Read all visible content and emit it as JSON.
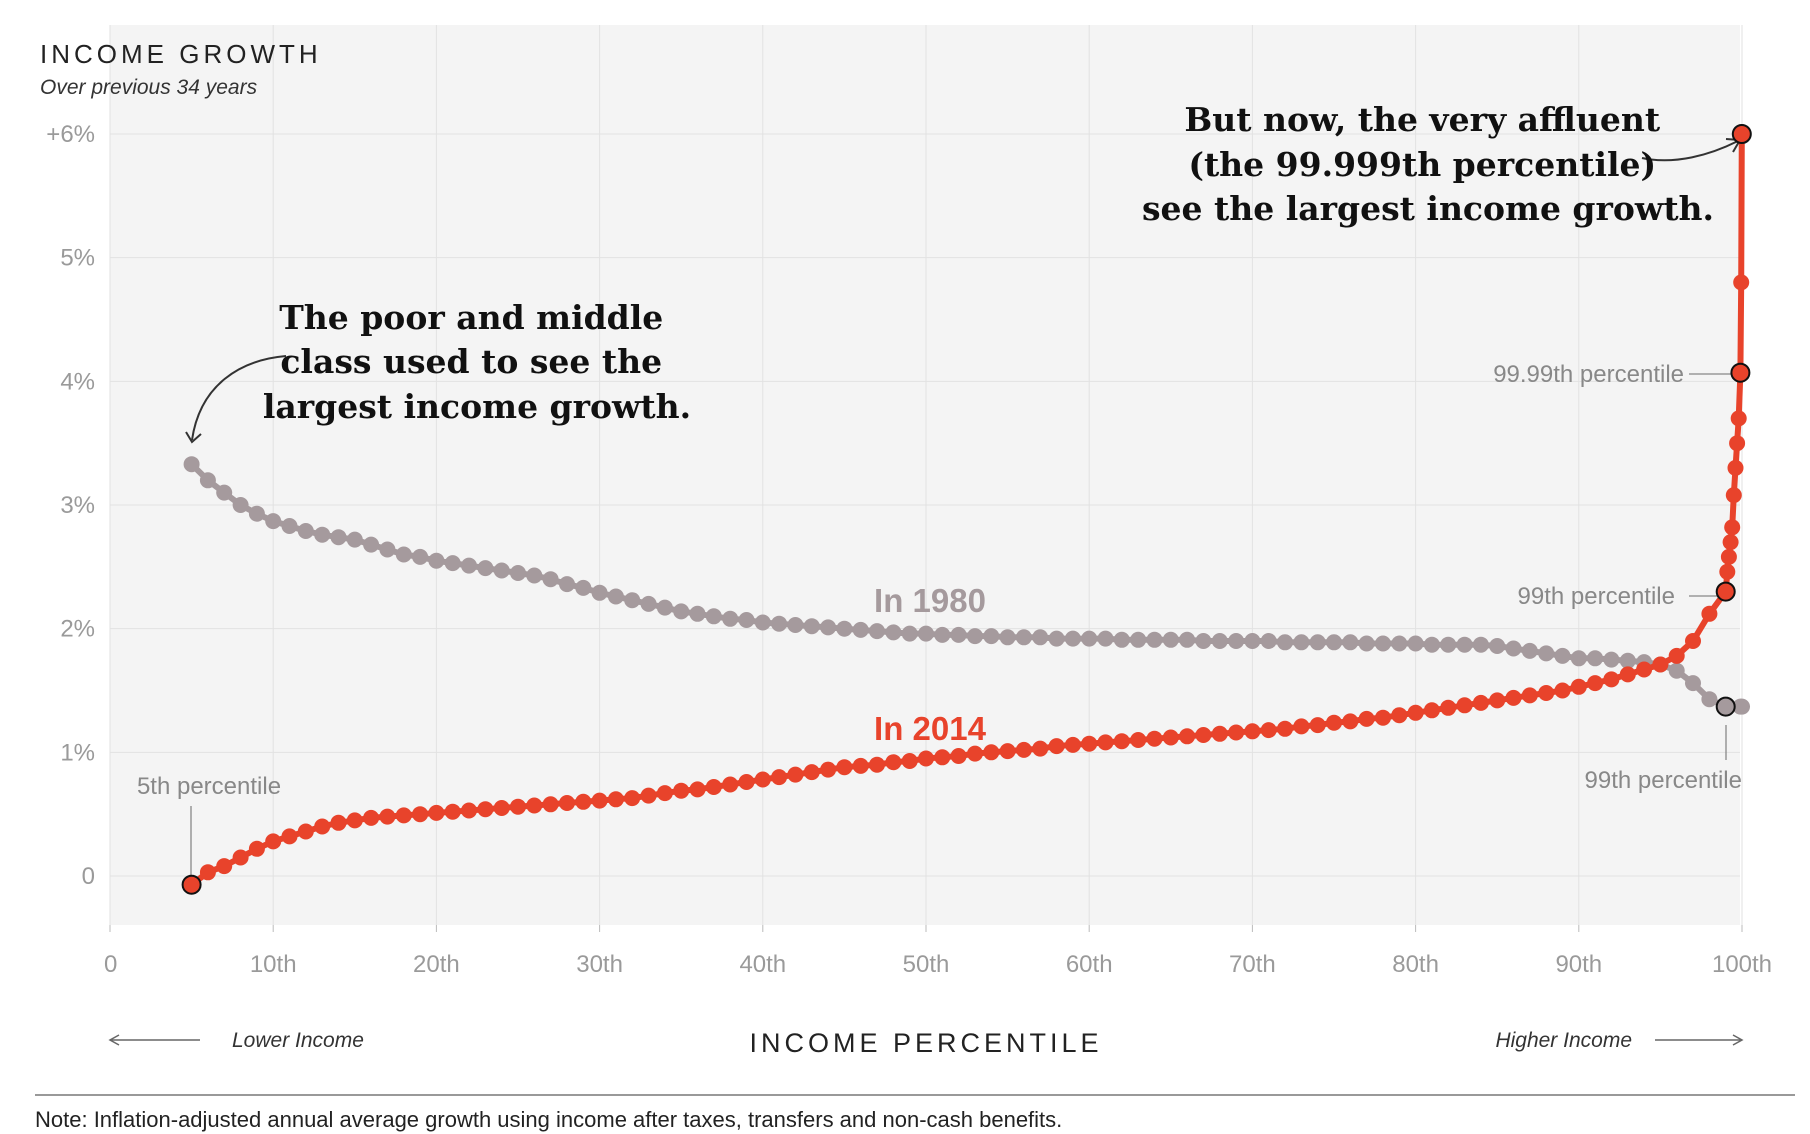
{
  "chart_data": {
    "type": "line",
    "title": "INCOME GROWTH",
    "subtitle": "Over previous 34 years",
    "xlabel": "INCOME PERCENTILE",
    "x_left_note": "Lower Income",
    "x_right_note": "Higher Income",
    "note": "Note: Inflation-adjusted annual average growth using income after taxes, transfers and non-cash benefits.",
    "xlim": [
      0,
      100
    ],
    "ylim": [
      -0.9,
      6.7
    ],
    "x_ticks": [
      {
        "value": 0,
        "label": "0"
      },
      {
        "value": 10,
        "label": "10th"
      },
      {
        "value": 20,
        "label": "20th"
      },
      {
        "value": 30,
        "label": "30th"
      },
      {
        "value": 40,
        "label": "40th"
      },
      {
        "value": 50,
        "label": "50th"
      },
      {
        "value": 60,
        "label": "60th"
      },
      {
        "value": 70,
        "label": "70th"
      },
      {
        "value": 80,
        "label": "80th"
      },
      {
        "value": 90,
        "label": "90th"
      },
      {
        "value": 100,
        "label": "100th"
      }
    ],
    "y_ticks": [
      {
        "value": 0,
        "label": "0"
      },
      {
        "value": 1,
        "label": "1%"
      },
      {
        "value": 2,
        "label": "2%"
      },
      {
        "value": 3,
        "label": "3%"
      },
      {
        "value": 4,
        "label": "4%"
      },
      {
        "value": 5,
        "label": "5%"
      },
      {
        "value": 6,
        "label": "+6%"
      }
    ],
    "series": [
      {
        "name": "In 1980",
        "color": "#a59a9d",
        "points": [
          [
            5,
            3.33
          ],
          [
            6,
            3.2
          ],
          [
            7,
            3.1
          ],
          [
            8,
            3.0
          ],
          [
            9,
            2.93
          ],
          [
            10,
            2.87
          ],
          [
            11,
            2.83
          ],
          [
            12,
            2.79
          ],
          [
            13,
            2.76
          ],
          [
            14,
            2.74
          ],
          [
            15,
            2.72
          ],
          [
            16,
            2.68
          ],
          [
            17,
            2.64
          ],
          [
            18,
            2.6
          ],
          [
            19,
            2.58
          ],
          [
            20,
            2.55
          ],
          [
            21,
            2.53
          ],
          [
            22,
            2.51
          ],
          [
            23,
            2.49
          ],
          [
            24,
            2.47
          ],
          [
            25,
            2.45
          ],
          [
            26,
            2.43
          ],
          [
            27,
            2.4
          ],
          [
            28,
            2.36
          ],
          [
            29,
            2.33
          ],
          [
            30,
            2.29
          ],
          [
            31,
            2.26
          ],
          [
            32,
            2.23
          ],
          [
            33,
            2.2
          ],
          [
            34,
            2.17
          ],
          [
            35,
            2.14
          ],
          [
            36,
            2.12
          ],
          [
            37,
            2.1
          ],
          [
            38,
            2.08
          ],
          [
            39,
            2.07
          ],
          [
            40,
            2.05
          ],
          [
            41,
            2.04
          ],
          [
            42,
            2.03
          ],
          [
            43,
            2.02
          ],
          [
            44,
            2.01
          ],
          [
            45,
            2.0
          ],
          [
            46,
            1.99
          ],
          [
            47,
            1.98
          ],
          [
            48,
            1.97
          ],
          [
            49,
            1.96
          ],
          [
            50,
            1.96
          ],
          [
            51,
            1.95
          ],
          [
            52,
            1.95
          ],
          [
            53,
            1.94
          ],
          [
            54,
            1.94
          ],
          [
            55,
            1.93
          ],
          [
            56,
            1.93
          ],
          [
            57,
            1.93
          ],
          [
            58,
            1.92
          ],
          [
            59,
            1.92
          ],
          [
            60,
            1.92
          ],
          [
            61,
            1.92
          ],
          [
            62,
            1.91
          ],
          [
            63,
            1.91
          ],
          [
            64,
            1.91
          ],
          [
            65,
            1.91
          ],
          [
            66,
            1.91
          ],
          [
            67,
            1.9
          ],
          [
            68,
            1.9
          ],
          [
            69,
            1.9
          ],
          [
            70,
            1.9
          ],
          [
            71,
            1.9
          ],
          [
            72,
            1.89
          ],
          [
            73,
            1.89
          ],
          [
            74,
            1.89
          ],
          [
            75,
            1.89
          ],
          [
            76,
            1.89
          ],
          [
            77,
            1.88
          ],
          [
            78,
            1.88
          ],
          [
            79,
            1.88
          ],
          [
            80,
            1.88
          ],
          [
            81,
            1.87
          ],
          [
            82,
            1.87
          ],
          [
            83,
            1.87
          ],
          [
            84,
            1.87
          ],
          [
            85,
            1.86
          ],
          [
            86,
            1.84
          ],
          [
            87,
            1.82
          ],
          [
            88,
            1.8
          ],
          [
            89,
            1.78
          ],
          [
            90,
            1.76
          ],
          [
            91,
            1.76
          ],
          [
            92,
            1.75
          ],
          [
            93,
            1.74
          ],
          [
            94,
            1.73
          ],
          [
            95,
            1.71
          ],
          [
            96,
            1.66
          ],
          [
            97,
            1.56
          ],
          [
            98,
            1.43
          ],
          [
            99,
            1.37
          ],
          [
            99.9,
            1.37
          ],
          [
            100,
            1.37
          ]
        ]
      },
      {
        "name": "In 2014",
        "color": "#e8432b",
        "points": [
          [
            5,
            -0.07
          ],
          [
            6,
            0.03
          ],
          [
            7,
            0.08
          ],
          [
            8,
            0.15
          ],
          [
            9,
            0.22
          ],
          [
            10,
            0.28
          ],
          [
            11,
            0.32
          ],
          [
            12,
            0.36
          ],
          [
            13,
            0.4
          ],
          [
            14,
            0.43
          ],
          [
            15,
            0.45
          ],
          [
            16,
            0.47
          ],
          [
            17,
            0.48
          ],
          [
            18,
            0.49
          ],
          [
            19,
            0.5
          ],
          [
            20,
            0.51
          ],
          [
            21,
            0.52
          ],
          [
            22,
            0.53
          ],
          [
            23,
            0.54
          ],
          [
            24,
            0.55
          ],
          [
            25,
            0.56
          ],
          [
            26,
            0.57
          ],
          [
            27,
            0.58
          ],
          [
            28,
            0.59
          ],
          [
            29,
            0.6
          ],
          [
            30,
            0.61
          ],
          [
            31,
            0.62
          ],
          [
            32,
            0.63
          ],
          [
            33,
            0.65
          ],
          [
            34,
            0.67
          ],
          [
            35,
            0.69
          ],
          [
            36,
            0.7
          ],
          [
            37,
            0.72
          ],
          [
            38,
            0.74
          ],
          [
            39,
            0.76
          ],
          [
            40,
            0.78
          ],
          [
            41,
            0.8
          ],
          [
            42,
            0.82
          ],
          [
            43,
            0.84
          ],
          [
            44,
            0.86
          ],
          [
            45,
            0.88
          ],
          [
            46,
            0.89
          ],
          [
            47,
            0.9
          ],
          [
            48,
            0.92
          ],
          [
            49,
            0.93
          ],
          [
            50,
            0.95
          ],
          [
            51,
            0.96
          ],
          [
            52,
            0.97
          ],
          [
            53,
            0.99
          ],
          [
            54,
            1.0
          ],
          [
            55,
            1.01
          ],
          [
            56,
            1.02
          ],
          [
            57,
            1.03
          ],
          [
            58,
            1.05
          ],
          [
            59,
            1.06
          ],
          [
            60,
            1.07
          ],
          [
            61,
            1.08
          ],
          [
            62,
            1.09
          ],
          [
            63,
            1.1
          ],
          [
            64,
            1.11
          ],
          [
            65,
            1.12
          ],
          [
            66,
            1.13
          ],
          [
            67,
            1.14
          ],
          [
            68,
            1.15
          ],
          [
            69,
            1.16
          ],
          [
            70,
            1.17
          ],
          [
            71,
            1.18
          ],
          [
            72,
            1.19
          ],
          [
            73,
            1.21
          ],
          [
            74,
            1.22
          ],
          [
            75,
            1.24
          ],
          [
            76,
            1.25
          ],
          [
            77,
            1.27
          ],
          [
            78,
            1.28
          ],
          [
            79,
            1.3
          ],
          [
            80,
            1.32
          ],
          [
            81,
            1.34
          ],
          [
            82,
            1.36
          ],
          [
            83,
            1.38
          ],
          [
            84,
            1.4
          ],
          [
            85,
            1.42
          ],
          [
            86,
            1.44
          ],
          [
            87,
            1.46
          ],
          [
            88,
            1.48
          ],
          [
            89,
            1.5
          ],
          [
            90,
            1.53
          ],
          [
            91,
            1.56
          ],
          [
            92,
            1.59
          ],
          [
            93,
            1.63
          ],
          [
            94,
            1.67
          ],
          [
            95,
            1.71
          ],
          [
            96,
            1.78
          ],
          [
            97,
            1.9
          ],
          [
            98,
            2.12
          ],
          [
            99,
            2.3
          ],
          [
            99.1,
            2.46
          ],
          [
            99.2,
            2.58
          ],
          [
            99.3,
            2.7
          ],
          [
            99.4,
            2.82
          ],
          [
            99.5,
            3.08
          ],
          [
            99.6,
            3.3
          ],
          [
            99.7,
            3.5
          ],
          [
            99.8,
            3.7
          ],
          [
            99.9,
            4.07
          ],
          [
            99.95,
            4.8
          ],
          [
            99.99,
            6.0
          ]
        ]
      }
    ],
    "annotations": {
      "poor_middle": [
        "The poor and middle",
        "class used to see the",
        "largest income growth."
      ],
      "affluent": [
        "But now, the very affluent",
        "(the 99.999th percentile)",
        "see the largest income growth."
      ],
      "series_1980": "In 1980",
      "series_2014": "In 2014",
      "p5": "5th percentile",
      "p99_2014": "99th percentile",
      "p9999": "99.99th percentile",
      "p99_1980": "99th percentile"
    }
  }
}
